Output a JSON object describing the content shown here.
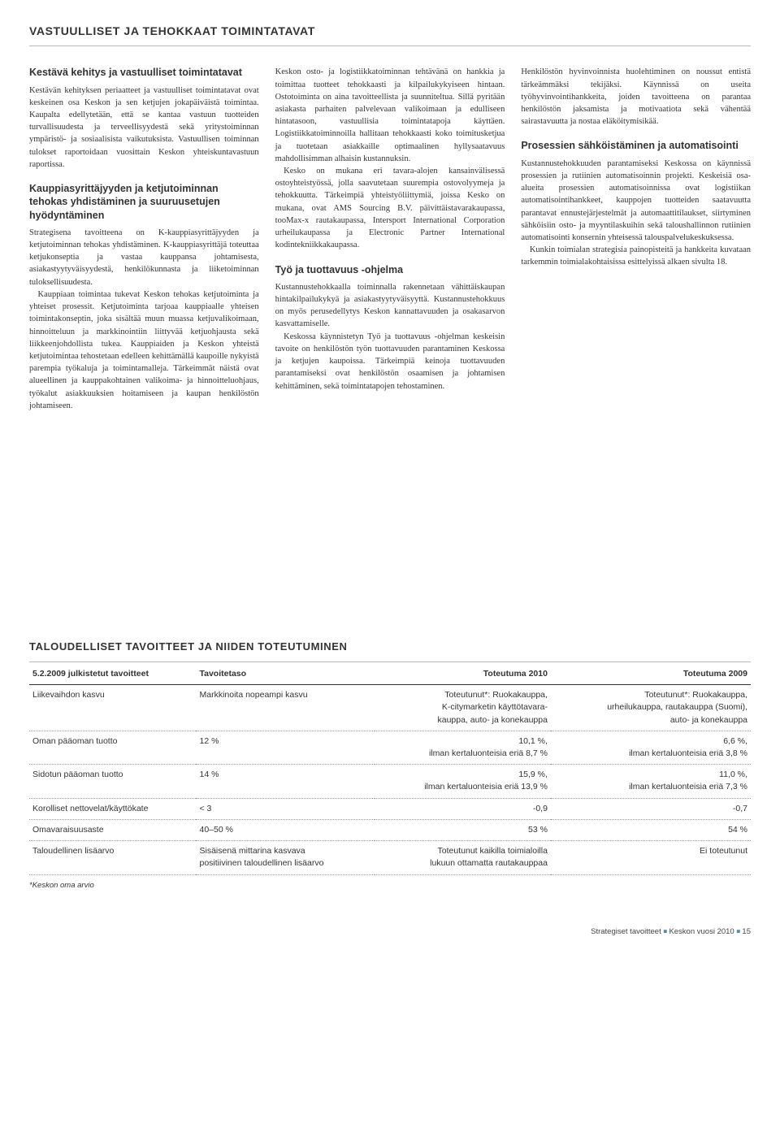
{
  "page_title": "VASTUULLISET JA TEHOKKAAT TOIMINTATAVAT",
  "col1": {
    "h1": "Kestävä kehitys ja vastuulliset toimintatavat",
    "p1": "Kestävän kehityksen periaatteet ja vastuulliset toimintatavat ovat keskeinen osa Keskon ja sen ketjujen jokapäiväistä toimintaa. Kaupalta edellytetään, että se kantaa vastuun tuotteiden turvallisuudesta ja terveellisyydestä sekä yritystoiminnan ympäristö- ja sosiaalisista vaikutuksista. Vastuullisen toiminnan tulokset raportoidaan vuosittain Keskon yhteiskuntavastuun raportissa.",
    "h2": "Kauppiasyrittäjyyden ja ketjutoiminnan tehokas yhdistäminen ja suuruusetujen hyödyntäminen",
    "p2": "Strategisena tavoitteena on K-kauppiasyrittäjyyden ja ketjutoiminnan tehokas yhdistäminen. K-kauppiasyrittäjä toteuttaa ketjukonseptia ja vastaa kauppansa johtamisesta, asiakastyytyväisyydestä, henkilökunnasta ja liiketoiminnan tuloksellisuudesta.",
    "p3": "Kauppiaan toimintaa tukevat Keskon tehokas ketjutoiminta ja yhteiset prosessit. Ketjutoiminta tarjoaa kauppiaalle yhteisen toimintakonseptin, joka sisältää muun muassa ketjuvalikoimaan, hinnoitteluun ja markkinointiin liittyvää ketjuohjausta sekä liikkeenjohdollista tukea. Kauppiaiden ja Keskon yhteistä ketjutoimintaa tehostetaan edelleen kehittämällä kaupoille nykyistä parempia työkaluja ja toimintamalleja. Tärkeimmät näistä ovat alueellinen ja kauppakohtainen valikoima- ja hinnoitteluohjaus, työkalut asiakkuuksien hoitamiseen ja kaupan henkilöstön johtamiseen."
  },
  "col2": {
    "p1": "Keskon osto- ja logistiikkatoiminnan tehtävänä on hankkia ja toimittaa tuotteet tehokkaasti ja kilpailukykyiseen hintaan. Ostotoiminta on aina tavoitteellista ja suunniteltua. Sillä pyritään asiakasta parhaiten palvelevaan valikoimaan ja edulliseen hintatasoon, vastuullisia toimintatapoja käyttäen. Logistiikkatoiminnoilla hallitaan tehokkaasti koko toimitusketjua ja tuotetaan asiakkaille optimaalinen hyllysaatavuus mahdollisimman alhaisin kustannuksin.",
    "p2": "Kesko on mukana eri tavara-alojen kansainvälisessä ostoyhteistyössä, jolla saavutetaan suurempia ostovolyymeja ja tehokkuutta. Tärkeimpiä yhteistyöliittymiä, joissa Kesko on mukana, ovat AMS Sourcing B.V. päivittäistavarakaupassa, tooMax-x rautakaupassa, Intersport International Corporation urheilukaupassa ja Electronic Partner International kodintekniikkakaupassa.",
    "h1": "Työ ja tuottavuus -ohjelma",
    "p3": "Kustannustehokkaalla toiminnalla rakennetaan vähittäiskaupan hintakilpailukykyä ja asiakastyytyväisyyttä. Kustannustehokkuus on myös perusedellytys Keskon kannattavuuden ja osakasarvon kasvattamiselle.",
    "p4": "Keskossa käynnistetyn Työ ja tuottavuus -ohjelman keskeisin tavoite on henkilöstön työn tuottavuuden parantaminen Keskossa ja ketjujen kaupoissa. Tärkeimpiä keinoja tuottavuuden parantamiseksi ovat henkilöstön osaamisen ja johtamisen kehittäminen, sekä toimintatapojen tehostaminen."
  },
  "col3": {
    "p1": "Henkilöstön hyvinvoinnista huolehtiminen on noussut entistä tärkeämmäksi tekijäksi. Käynnissä on useita työhyvinvointihankkeita, joiden tavoitteena on parantaa henkilöstön jaksamista ja motivaatiota sekä vähentää sairastavuutta ja nostaa eläköitymisikää.",
    "h1": "Prosessien sähköistäminen ja automatisointi",
    "p2": "Kustannustehokkuuden parantamiseksi Keskossa on käynnissä prosessien ja rutiinien automatisoinnin projekti. Keskeisiä osa-alueita prosessien automatisoinnissa ovat logistiikan automatisointihankkeet, kauppojen tuotteiden saatavuutta parantavat ennustejärjestelmät ja automaattitilaukset, siirtyminen sähköisiin osto- ja myyntilaskuihin sekä taloushallinnon rutiinien automatisointi konsernin yhteisessä talouspalvelukeskuksessa.",
    "p3": "Kunkin toimialan strategisia painopisteitä ja hankkeita kuvataan tarkemmin toimialakohtaisissa esittelyissä alkaen sivulta 18."
  },
  "table": {
    "title": "TALOUDELLISET TAVOITTEET JA NIIDEN TOTEUTUMINEN",
    "headers": [
      "5.2.2009 julkistetut tavoitteet",
      "Tavoitetaso",
      "Toteutuma 2010",
      "Toteutuma 2009"
    ],
    "rows": [
      {
        "c0": "Liikevaihdon kasvu",
        "c1": "Markkinoita nopeampi kasvu",
        "c2": "Toteutunut*: Ruokakauppa,\nK-citymarketin käyttötavara-\nkauppa, auto- ja konekauppa",
        "c3": "Toteutunut*: Ruokakauppa,\nurheilukauppa, rautakauppa (Suomi),\nauto- ja konekauppa"
      },
      {
        "c0": "Oman pääoman tuotto",
        "c1": "12 %",
        "c2": "10,1 %,\nilman kertaluonteisia eriä 8,7 %",
        "c3": "6,6 %,\nilman kertaluonteisia eriä 3,8 %"
      },
      {
        "c0": "Sidotun pääoman tuotto",
        "c1": "14 %",
        "c2": "15,9 %,\nilman kertaluonteisia eriä 13,9 %",
        "c3": "11,0 %,\nilman kertaluonteisia eriä 7,3 %"
      },
      {
        "c0": "Korolliset nettovelat/käyttökate",
        "c1": "< 3",
        "c2": "-0,9",
        "c3": "-0,7"
      },
      {
        "c0": "Omavaraisuusaste",
        "c1": "40–50 %",
        "c2": "53 %",
        "c3": "54 %"
      },
      {
        "c0": "Taloudellinen lisäarvo",
        "c1": "Sisäisenä mittarina kasvava\npositiivinen taloudellinen lisäarvo",
        "c2": "Toteutunut kaikilla toimialoilla\nlukuun ottamatta rautakauppaa",
        "c3": "Ei toteutunut"
      }
    ],
    "footnote": "*Keskon oma arvio"
  },
  "footer": {
    "section": "Strategiset tavoitteet",
    "doc": "Keskon vuosi 2010",
    "page": "15"
  }
}
